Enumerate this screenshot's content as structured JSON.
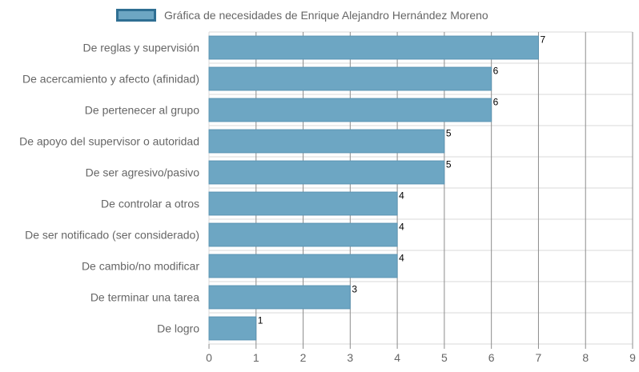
{
  "legend": {
    "label": "Gráfica de necesidades de Enrique Alejandro Hernández Moreno"
  },
  "colors": {
    "bar_fill": "#6da6c3",
    "bar_border": "#5b94b2",
    "legend_border": "#2f6f93",
    "grid": "#d9d9d9",
    "grid_strong": "#8c8c8c",
    "label": "#666666",
    "value_label": "#000000"
  },
  "chart_data": {
    "type": "bar",
    "orientation": "horizontal",
    "categories": [
      "De reglas y supervisión",
      "De acercamiento y afecto (afinidad)",
      "De pertenecer al grupo",
      "De apoyo del supervisor o autoridad",
      "De ser agresivo/pasivo",
      "De controlar a otros",
      "De ser notificado (ser considerado)",
      "De cambio/no modificar",
      "De terminar una tarea",
      "De logro"
    ],
    "series": [
      {
        "name": "Gráfica de necesidades de Enrique Alejandro Hernández Moreno",
        "values": [
          7,
          6,
          6,
          5,
          5,
          4,
          4,
          4,
          3,
          1
        ]
      }
    ],
    "xlim": [
      0,
      9
    ],
    "x_ticks": [
      "0",
      "1",
      "2",
      "3",
      "4",
      "5",
      "6",
      "7",
      "8",
      "9"
    ],
    "data_labels": [
      "7",
      "6",
      "6",
      "5",
      "5",
      "4",
      "4",
      "4",
      "3",
      "1"
    ],
    "grid": true,
    "legend_position": "top"
  }
}
